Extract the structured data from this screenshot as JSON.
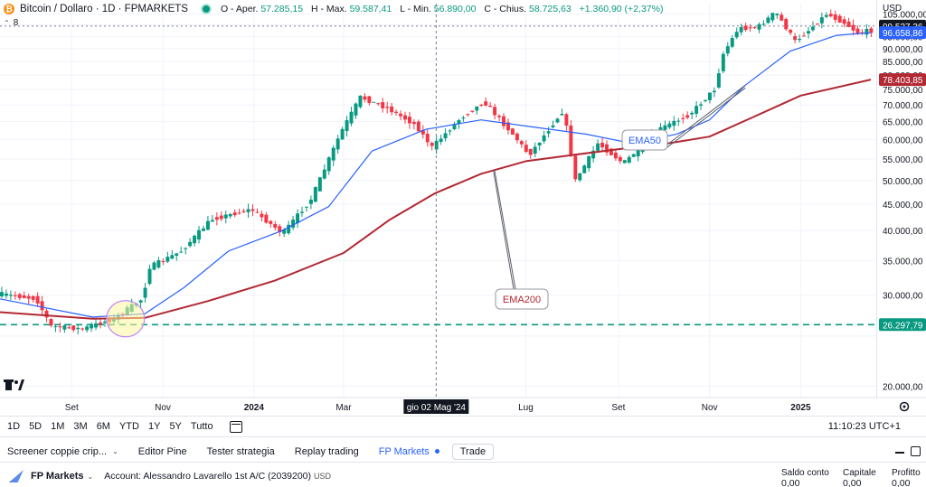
{
  "legend": {
    "symbol_title": "Bitcoin / Dollaro · 1D · FPMARKETS",
    "open_label": "O - Aper.",
    "open_value": "57.285,15",
    "high_label": "H - Max.",
    "high_value": "59.587,41",
    "low_label": "L - Min.",
    "low_value": "56.890,00",
    "close_label": "C - Chius.",
    "close_value": "58.725,63",
    "change_value": "+1.360,90 (+2,37%)",
    "indicator_count": "8"
  },
  "axis": {
    "currency": "USD"
  },
  "timeframes": [
    "1D",
    "5D",
    "1M",
    "3M",
    "6M",
    "YTD",
    "1Y",
    "5Y",
    "Tutto"
  ],
  "clock": "11:10:23 UTC+1",
  "panel_tabs": {
    "screener": "Screener coppie crip...",
    "pine": "Editor Pine",
    "tester": "Tester strategia",
    "replay": "Replay trading",
    "fp": "FP Markets",
    "trade": "Trade"
  },
  "account": {
    "broker": "FP Markets",
    "text": "Account: Alessandro Lavarello 1st A/C (2039200)",
    "currency": "USD",
    "saldo_label": "Saldo conto",
    "saldo_value": "0,00",
    "capitale_label": "Capitale",
    "capitale_value": "0,00",
    "profitto_label": "Profitto",
    "profitto_value": "0,00"
  },
  "colors": {
    "up": "#089981",
    "down": "#f23645",
    "ema50": "#2962ff",
    "ema200": "#b22833",
    "dashed": "#089981",
    "marker_fill": "#fff59d",
    "marker_stroke": "#c084fc"
  },
  "chart_data": {
    "type": "line",
    "y_axis": {
      "scale": "log",
      "ticks": [
        20000,
        25000,
        30000,
        35000,
        40000,
        45000,
        50000,
        55000,
        60000,
        65000,
        70000,
        75000,
        80000,
        85000,
        90000,
        95000,
        100000,
        105000
      ],
      "tick_labels": [
        "20.000,00",
        "",
        "30.000,00",
        "35.000,00",
        "40.000,00",
        "45.000,00",
        "50.000,00",
        "55.000,00",
        "60.000,00",
        "65.000,00",
        "70.000,00",
        "75.000,00",
        "80.000,00",
        "85.000,00",
        "90.000,00",
        "95.000,00",
        "",
        "105.000,00"
      ]
    },
    "x_axis": {
      "range": [
        "2023-07-15",
        "2025-02-20"
      ],
      "ticks": [
        {
          "label": "Set",
          "date": "2023-09-01"
        },
        {
          "label": "Nov",
          "date": "2023-11-01"
        },
        {
          "label": "2024",
          "date": "2024-01-01",
          "bold": true
        },
        {
          "label": "Mar",
          "date": "2024-03-01"
        },
        {
          "label": "Lug",
          "date": "2024-07-01"
        },
        {
          "label": "Set",
          "date": "2024-09-01"
        },
        {
          "label": "Nov",
          "date": "2024-11-01"
        },
        {
          "label": "2025",
          "date": "2025-01-01",
          "bold": true
        }
      ],
      "crosshair_label": "gio 02 Mag '24",
      "crosshair_date": "2024-05-02"
    },
    "price_path": [
      [
        "2023-07-15",
        30200
      ],
      [
        "2023-08-10",
        29500
      ],
      [
        "2023-08-20",
        26100
      ],
      [
        "2023-09-10",
        25800
      ],
      [
        "2023-10-01",
        27000
      ],
      [
        "2023-10-20",
        29500
      ],
      [
        "2023-10-25",
        34000
      ],
      [
        "2023-11-15",
        36500
      ],
      [
        "2023-12-05",
        42000
      ],
      [
        "2024-01-01",
        44000
      ],
      [
        "2024-01-22",
        39500
      ],
      [
        "2024-02-10",
        46000
      ],
      [
        "2024-03-01",
        62000
      ],
      [
        "2024-03-14",
        72500
      ],
      [
        "2024-04-01",
        69000
      ],
      [
        "2024-04-20",
        64000
      ],
      [
        "2024-05-01",
        58000
      ],
      [
        "2024-05-20",
        66000
      ],
      [
        "2024-06-05",
        71000
      ],
      [
        "2024-06-25",
        61000
      ],
      [
        "2024-07-05",
        56000
      ],
      [
        "2024-07-28",
        68500
      ],
      [
        "2024-08-05",
        50000
      ],
      [
        "2024-08-20",
        59000
      ],
      [
        "2024-09-06",
        54000
      ],
      [
        "2024-10-01",
        63000
      ],
      [
        "2024-10-20",
        67000
      ],
      [
        "2024-11-06",
        75000
      ],
      [
        "2024-11-12",
        88000
      ],
      [
        "2024-11-22",
        98500
      ],
      [
        "2024-12-05",
        99000
      ],
      [
        "2024-12-17",
        106000
      ],
      [
        "2024-12-30",
        93000
      ],
      [
        "2025-01-07",
        97000
      ],
      [
        "2025-01-20",
        105000
      ],
      [
        "2025-02-01",
        101000
      ],
      [
        "2025-02-10",
        96500
      ],
      [
        "2025-02-17",
        97500
      ]
    ],
    "series": [
      {
        "name": "EMA50",
        "color": "#2962ff",
        "points": [
          [
            "2023-07-15",
            29500
          ],
          [
            "2023-09-15",
            27200
          ],
          [
            "2023-10-20",
            27600
          ],
          [
            "2023-11-15",
            31000
          ],
          [
            "2023-12-15",
            36500
          ],
          [
            "2024-01-20",
            40000
          ],
          [
            "2024-02-20",
            44500
          ],
          [
            "2024-03-20",
            57000
          ],
          [
            "2024-04-25",
            62800
          ],
          [
            "2024-06-01",
            65500
          ],
          [
            "2024-07-05",
            63500
          ],
          [
            "2024-08-10",
            61500
          ],
          [
            "2024-09-10",
            59000
          ],
          [
            "2024-10-10",
            61500
          ],
          [
            "2024-11-01",
            65500
          ],
          [
            "2024-11-25",
            76500
          ],
          [
            "2024-12-25",
            89000
          ],
          [
            "2025-01-25",
            95500
          ],
          [
            "2025-02-17",
            96659
          ]
        ]
      },
      {
        "name": "EMA200",
        "color": "#b22833",
        "points": [
          [
            "2023-07-15",
            27800
          ],
          [
            "2023-09-15",
            27000
          ],
          [
            "2023-10-20",
            27100
          ],
          [
            "2023-12-01",
            29200
          ],
          [
            "2024-01-15",
            32000
          ],
          [
            "2024-03-01",
            36200
          ],
          [
            "2024-04-01",
            42000
          ],
          [
            "2024-05-01",
            47200
          ],
          [
            "2024-06-01",
            51500
          ],
          [
            "2024-07-01",
            54500
          ],
          [
            "2024-08-01",
            56000
          ],
          [
            "2024-09-01",
            57500
          ],
          [
            "2024-10-01",
            58800
          ],
          [
            "2024-11-01",
            60800
          ],
          [
            "2024-12-01",
            66500
          ],
          [
            "2025-01-01",
            73000
          ],
          [
            "2025-02-17",
            78404
          ]
        ]
      }
    ],
    "horizontal_lines": [
      {
        "value": 26297.79,
        "style": "dashed",
        "color": "#089981"
      }
    ],
    "dotted_level": 99527.36,
    "price_labels": [
      {
        "value": 99527.36,
        "text": "99.527,36",
        "bg": "#131722",
        "fg": "#ffffff"
      },
      {
        "value": 96658.86,
        "text": "96.658,86",
        "bg": "#2962ff",
        "fg": "#ffffff"
      },
      {
        "value": 78403.85,
        "text": "78.403,85",
        "bg": "#b22833",
        "fg": "#ffffff"
      },
      {
        "value": 26297.79,
        "text": "26.297,79",
        "bg": "#089981",
        "fg": "#ffffff"
      }
    ],
    "annotations": [
      {
        "text": "EMA50",
        "color": "#2962ff"
      },
      {
        "text": "EMA200",
        "color": "#b22833"
      }
    ],
    "marker": {
      "date": "2023-10-07",
      "value": 27000
    }
  }
}
